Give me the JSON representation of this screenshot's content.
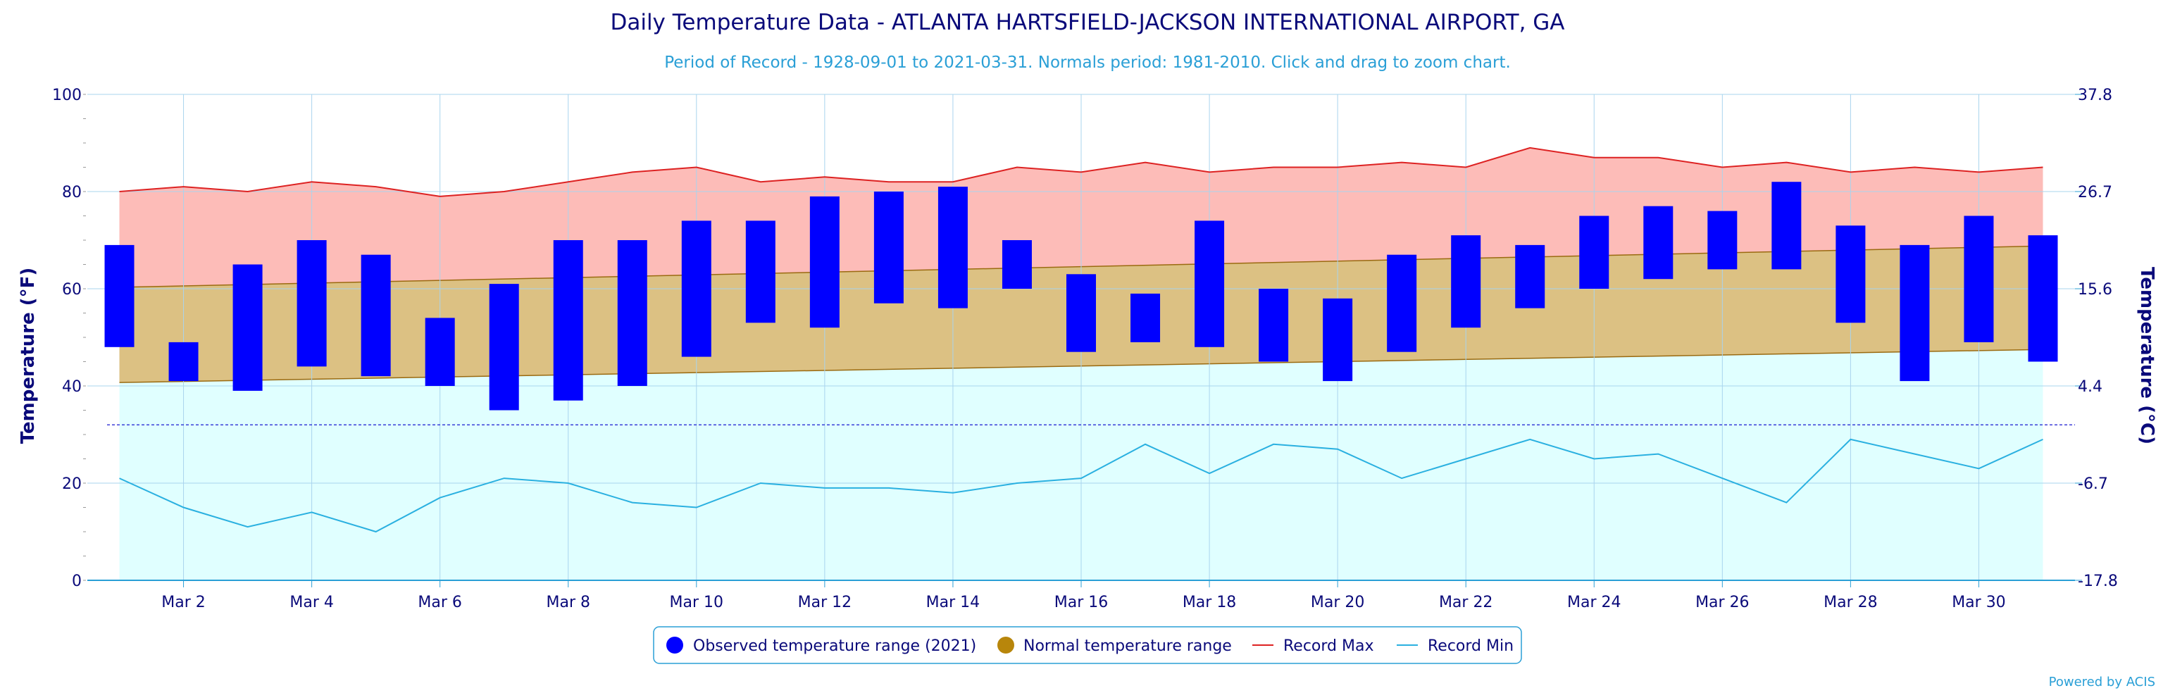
{
  "chart_data": {
    "type": "bar",
    "title": "Daily Temperature Data - ATLANTA HARTSFIELD-JACKSON INTERNATIONAL AIRPORT, GA",
    "subtitle": "Period of Record - 1928-09-01 to 2021-03-31. Normals period: 1981-2010. Click and drag to zoom chart.",
    "ylabel_left": "Temperature (°F)",
    "ylabel_right": "Temperature (°C)",
    "ylim": [
      0,
      100
    ],
    "yticks_left": [
      "0",
      "20",
      "40",
      "60",
      "80",
      "100"
    ],
    "yticks_right": [
      "-17.8",
      "-6.7",
      "4.4",
      "15.6",
      "26.7",
      "37.8"
    ],
    "freezing_line": 32,
    "days": [
      1,
      2,
      3,
      4,
      5,
      6,
      7,
      8,
      9,
      10,
      11,
      12,
      13,
      14,
      15,
      16,
      17,
      18,
      19,
      20,
      21,
      22,
      23,
      24,
      25,
      26,
      27,
      28,
      29,
      30,
      31
    ],
    "x_tick_labels": [
      "Mar 2",
      "Mar 4",
      "Mar 6",
      "Mar 8",
      "Mar 10",
      "Mar 12",
      "Mar 14",
      "Mar 16",
      "Mar 18",
      "Mar 20",
      "Mar 22",
      "Mar 24",
      "Mar 26",
      "Mar 28",
      "Mar 30"
    ],
    "x_tick_days": [
      2,
      4,
      6,
      8,
      10,
      12,
      14,
      16,
      18,
      20,
      22,
      24,
      26,
      28,
      30
    ],
    "series": [
      {
        "name": "Observed temperature range (2021)",
        "color": "#0000ff",
        "low": [
          48,
          41,
          39,
          44,
          42,
          40,
          35,
          37,
          40,
          46,
          53,
          52,
          57,
          56,
          60,
          47,
          49,
          48,
          45,
          41,
          47,
          52,
          56,
          60,
          62,
          64,
          64,
          53,
          41,
          49,
          45
        ],
        "high": [
          69,
          49,
          65,
          70,
          67,
          54,
          61,
          70,
          70,
          74,
          74,
          79,
          80,
          81,
          70,
          63,
          59,
          74,
          60,
          58,
          67,
          71,
          69,
          75,
          77,
          76,
          82,
          73,
          69,
          75,
          71
        ]
      },
      {
        "name": "Normal temperature range",
        "color": "#b8860b",
        "low_start": 40.7,
        "low_end": 47.5,
        "high_start": 60.3,
        "high_end": 68.8
      },
      {
        "name": "Record Max",
        "color": "#dd2222",
        "values": [
          80,
          81,
          80,
          82,
          81,
          79,
          80,
          82,
          84,
          85,
          82,
          83,
          82,
          82,
          85,
          84,
          86,
          84,
          85,
          85,
          86,
          85,
          89,
          87,
          87,
          85,
          86,
          84,
          85,
          84,
          85
        ]
      },
      {
        "name": "Record Min",
        "color": "#2ab0e0",
        "values": [
          21,
          15,
          11,
          14,
          10,
          17,
          21,
          20,
          16,
          15,
          20,
          19,
          19,
          18,
          20,
          21,
          28,
          22,
          28,
          27,
          21,
          25,
          29,
          25,
          26,
          21,
          16,
          29,
          26,
          23,
          29
        ]
      }
    ],
    "legend_position": "bottom-center",
    "grid": true
  },
  "credits": "Powered by ACIS"
}
